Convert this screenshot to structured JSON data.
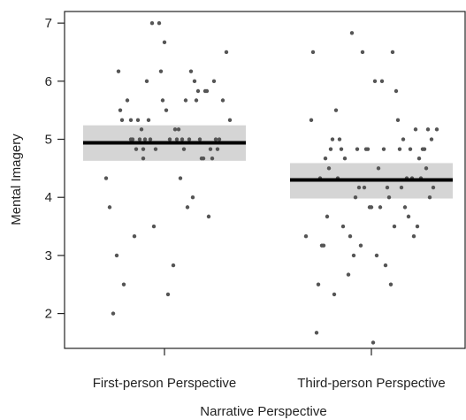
{
  "chart_data": {
    "type": "scatter",
    "title": "",
    "xlabel": "Narrative Perspective",
    "ylabel": "Mental Imagery",
    "categories": [
      "First-person Perspective",
      "Third-person Perspective"
    ],
    "ylim": [
      1.4,
      7.2
    ],
    "yticks": [
      2,
      3,
      4,
      5,
      6,
      7
    ],
    "grid": false,
    "legend": "none",
    "colors": {
      "points": "#555555",
      "mean_line": "#000000",
      "band": "#d0d0d0",
      "axis": "#222222"
    },
    "series": [
      {
        "category": "First-person Perspective",
        "mean": 4.94,
        "band": [
          4.63,
          5.24
        ],
        "points": [
          [
            -0.33,
            4.33
          ],
          [
            -0.31,
            3.83
          ],
          [
            -0.29,
            2.0
          ],
          [
            -0.27,
            3.0
          ],
          [
            -0.26,
            6.17
          ],
          [
            -0.25,
            5.5
          ],
          [
            -0.24,
            5.33
          ],
          [
            -0.23,
            2.5
          ],
          [
            -0.21,
            5.67
          ],
          [
            -0.19,
            5.0
          ],
          [
            -0.19,
            5.33
          ],
          [
            -0.18,
            5.0
          ],
          [
            -0.17,
            3.33
          ],
          [
            -0.16,
            4.83
          ],
          [
            -0.15,
            5.33
          ],
          [
            -0.14,
            5.0
          ],
          [
            -0.13,
            5.17
          ],
          [
            -0.12,
            4.83
          ],
          [
            -0.12,
            4.67
          ],
          [
            -0.11,
            5.0
          ],
          [
            -0.1,
            6.0
          ],
          [
            -0.09,
            5.33
          ],
          [
            -0.08,
            5.0
          ],
          [
            -0.07,
            7.0
          ],
          [
            -0.06,
            3.5
          ],
          [
            -0.05,
            4.83
          ],
          [
            -0.03,
            7.0
          ],
          [
            -0.02,
            6.17
          ],
          [
            -0.01,
            5.67
          ],
          [
            0.0,
            6.67
          ],
          [
            0.01,
            5.5
          ],
          [
            0.02,
            2.33
          ],
          [
            0.03,
            5.0
          ],
          [
            0.05,
            2.83
          ],
          [
            0.06,
            5.17
          ],
          [
            0.07,
            5.0
          ],
          [
            0.08,
            5.17
          ],
          [
            0.09,
            4.33
          ],
          [
            0.1,
            5.0
          ],
          [
            0.11,
            4.83
          ],
          [
            0.12,
            5.67
          ],
          [
            0.13,
            3.83
          ],
          [
            0.14,
            5.0
          ],
          [
            0.15,
            6.17
          ],
          [
            0.16,
            4.0
          ],
          [
            0.17,
            6.0
          ],
          [
            0.18,
            5.67
          ],
          [
            0.19,
            5.83
          ],
          [
            0.2,
            5.0
          ],
          [
            0.21,
            4.67
          ],
          [
            0.22,
            4.67
          ],
          [
            0.23,
            5.83
          ],
          [
            0.24,
            5.83
          ],
          [
            0.25,
            3.67
          ],
          [
            0.26,
            4.83
          ],
          [
            0.27,
            4.67
          ],
          [
            0.28,
            6.0
          ],
          [
            0.29,
            5.0
          ],
          [
            0.3,
            4.83
          ],
          [
            0.31,
            5.0
          ],
          [
            0.33,
            5.67
          ],
          [
            0.35,
            6.5
          ],
          [
            0.37,
            5.33
          ]
        ]
      },
      {
        "category": "Third-person Perspective",
        "mean": 4.3,
        "band": [
          3.98,
          4.59
        ],
        "points": [
          [
            -0.37,
            3.33
          ],
          [
            -0.34,
            5.33
          ],
          [
            -0.33,
            6.5
          ],
          [
            -0.31,
            1.67
          ],
          [
            -0.3,
            2.5
          ],
          [
            -0.29,
            4.33
          ],
          [
            -0.28,
            3.17
          ],
          [
            -0.27,
            3.17
          ],
          [
            -0.26,
            4.67
          ],
          [
            -0.25,
            3.67
          ],
          [
            -0.24,
            4.5
          ],
          [
            -0.23,
            4.83
          ],
          [
            -0.22,
            5.0
          ],
          [
            -0.21,
            2.33
          ],
          [
            -0.2,
            5.5
          ],
          [
            -0.19,
            4.33
          ],
          [
            -0.18,
            5.0
          ],
          [
            -0.17,
            4.83
          ],
          [
            -0.16,
            3.5
          ],
          [
            -0.15,
            4.67
          ],
          [
            -0.13,
            2.67
          ],
          [
            -0.12,
            3.33
          ],
          [
            -0.11,
            6.83
          ],
          [
            -0.1,
            3.0
          ],
          [
            -0.09,
            4.0
          ],
          [
            -0.08,
            4.83
          ],
          [
            -0.07,
            4.17
          ],
          [
            -0.06,
            3.17
          ],
          [
            -0.05,
            6.5
          ],
          [
            -0.04,
            4.17
          ],
          [
            -0.03,
            4.83
          ],
          [
            -0.02,
            4.83
          ],
          [
            -0.01,
            3.83
          ],
          [
            0.0,
            3.83
          ],
          [
            0.01,
            1.5
          ],
          [
            0.02,
            6.0
          ],
          [
            0.03,
            3.0
          ],
          [
            0.04,
            4.5
          ],
          [
            0.05,
            3.83
          ],
          [
            0.06,
            6.0
          ],
          [
            0.07,
            4.83
          ],
          [
            0.08,
            2.83
          ],
          [
            0.09,
            4.17
          ],
          [
            0.1,
            4.0
          ],
          [
            0.11,
            2.5
          ],
          [
            0.12,
            6.5
          ],
          [
            0.13,
            3.5
          ],
          [
            0.14,
            5.83
          ],
          [
            0.15,
            5.33
          ],
          [
            0.16,
            4.83
          ],
          [
            0.17,
            4.17
          ],
          [
            0.18,
            5.0
          ],
          [
            0.19,
            3.83
          ],
          [
            0.2,
            4.33
          ],
          [
            0.21,
            3.67
          ],
          [
            0.22,
            4.83
          ],
          [
            0.23,
            4.33
          ],
          [
            0.24,
            3.33
          ],
          [
            0.25,
            5.17
          ],
          [
            0.26,
            3.5
          ],
          [
            0.27,
            4.67
          ],
          [
            0.28,
            4.33
          ],
          [
            0.29,
            4.83
          ],
          [
            0.3,
            4.83
          ],
          [
            0.31,
            4.5
          ],
          [
            0.32,
            5.17
          ],
          [
            0.33,
            4.0
          ],
          [
            0.34,
            5.0
          ],
          [
            0.35,
            4.17
          ],
          [
            0.37,
            5.17
          ]
        ]
      }
    ]
  }
}
